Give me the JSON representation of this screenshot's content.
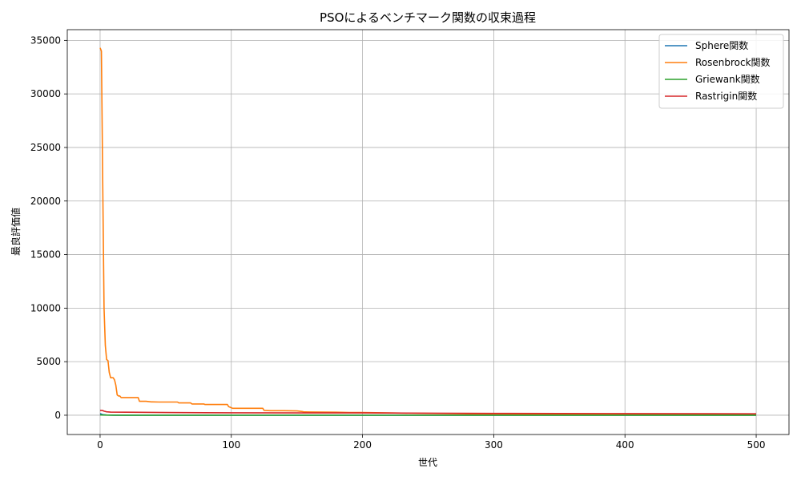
{
  "chart_data": {
    "type": "line",
    "title": "PSOによるベンチマーク関数の収束過程",
    "xlabel": "世代",
    "ylabel": "最良評価値",
    "xlim": [
      -25,
      525
    ],
    "ylim": [
      -1800,
      36000
    ],
    "xticks": [
      0,
      100,
      200,
      300,
      400,
      500
    ],
    "yticks": [
      0,
      5000,
      10000,
      15000,
      20000,
      25000,
      30000,
      35000
    ],
    "grid": true,
    "legend_position": "top-right",
    "series": [
      {
        "name": "Sphere関数",
        "color": "#1f77b4",
        "x": [
          0,
          2,
          5,
          10,
          30,
          100,
          500
        ],
        "y": [
          150,
          60,
          20,
          5,
          1,
          0,
          0
        ]
      },
      {
        "name": "Rosenbrock関数",
        "color": "#ff7f0e",
        "x": [
          0,
          1,
          2,
          3,
          4,
          5,
          6,
          7,
          8,
          9,
          10,
          11,
          12,
          13,
          14,
          15,
          16,
          18,
          20,
          25,
          29,
          30,
          35,
          39,
          40,
          45,
          50,
          55,
          59,
          60,
          65,
          69,
          70,
          75,
          79,
          80,
          85,
          90,
          97,
          98,
          100,
          101,
          105,
          110,
          115,
          120,
          124,
          125,
          130,
          140,
          150,
          154,
          155,
          160,
          170,
          180,
          190,
          200,
          220,
          250,
          280,
          300,
          350,
          400,
          450,
          500
        ],
        "y": [
          34300,
          34000,
          22000,
          10000,
          6500,
          5200,
          5100,
          4000,
          3500,
          3500,
          3500,
          3300,
          2800,
          1900,
          1800,
          1800,
          1650,
          1650,
          1650,
          1650,
          1650,
          1300,
          1300,
          1250,
          1250,
          1230,
          1230,
          1230,
          1230,
          1150,
          1150,
          1150,
          1050,
          1050,
          1050,
          1000,
          1000,
          1000,
          1000,
          800,
          700,
          650,
          650,
          650,
          650,
          650,
          650,
          450,
          420,
          420,
          400,
          350,
          320,
          300,
          290,
          280,
          260,
          250,
          210,
          170,
          130,
          110,
          90,
          70,
          60,
          50
        ]
      },
      {
        "name": "Griewank関数",
        "color": "#2ca02c",
        "x": [
          0,
          5,
          20,
          100,
          500
        ],
        "y": [
          30,
          8,
          2,
          1,
          1
        ]
      },
      {
        "name": "Rastrigin関数",
        "color": "#d62728",
        "x": [
          0,
          2,
          3,
          5,
          8,
          20,
          50,
          100,
          200,
          250,
          300,
          400,
          500
        ],
        "y": [
          450,
          440,
          380,
          320,
          290,
          280,
          250,
          230,
          210,
          190,
          170,
          150,
          130
        ]
      }
    ]
  }
}
